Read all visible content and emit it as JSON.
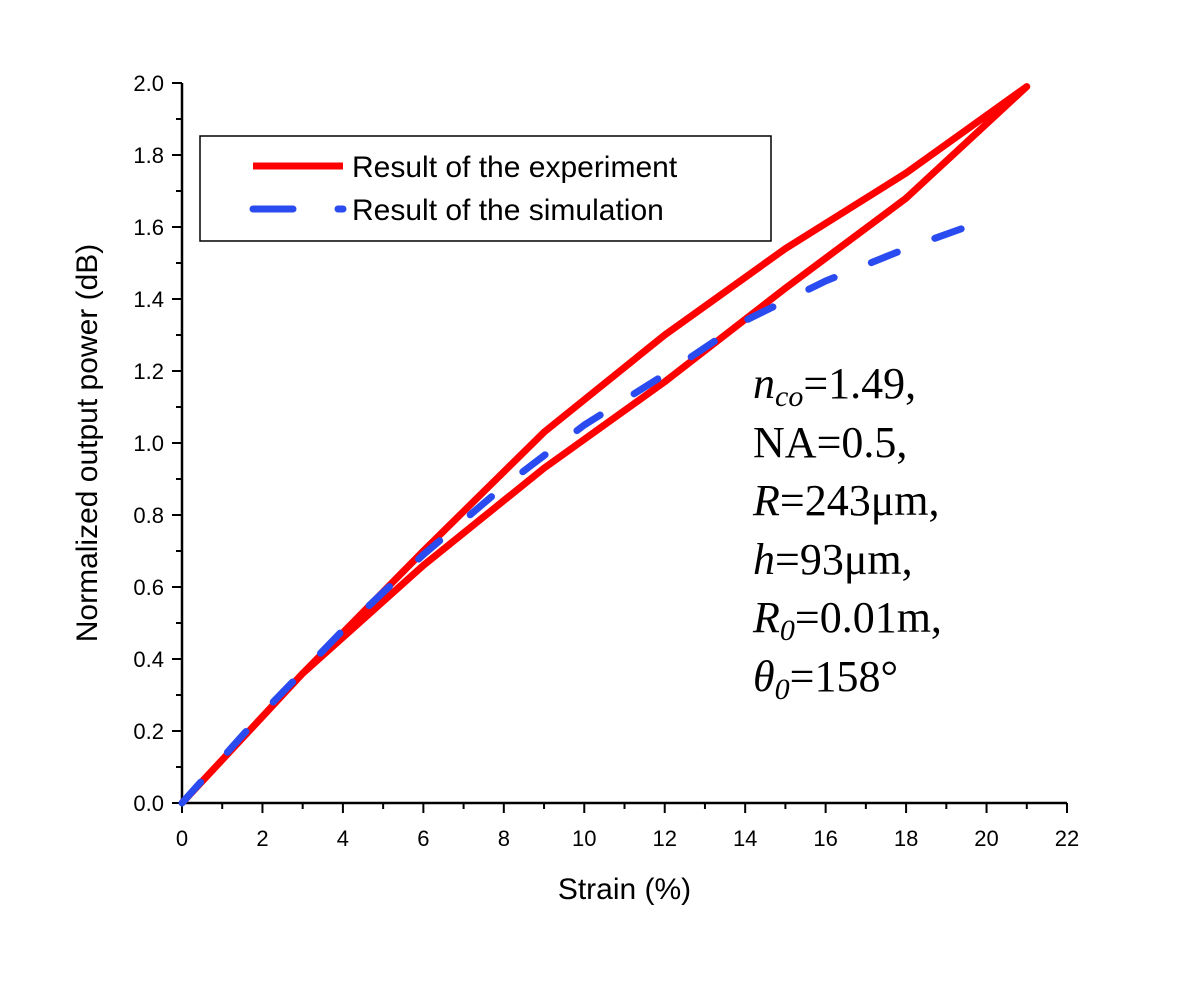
{
  "chart_data": {
    "type": "line",
    "xlabel": "Strain (%)",
    "ylabel": "Normalized output power (dB)",
    "xlim": [
      0,
      22
    ],
    "ylim": [
      0,
      2.0
    ],
    "xticks": [
      "0",
      "2",
      "4",
      "6",
      "8",
      "10",
      "12",
      "14",
      "16",
      "18",
      "20",
      "22"
    ],
    "yticks": [
      "0.0",
      "0.2",
      "0.4",
      "0.6",
      "0.8",
      "1.0",
      "1.2",
      "1.4",
      "1.6",
      "1.8",
      "2.0"
    ],
    "legend_position": "top-left",
    "series": [
      {
        "name": "Result of the experiment",
        "color": "#ff0000",
        "style": "solid",
        "x": [
          0,
          3,
          6,
          9,
          12,
          15,
          18,
          21,
          18,
          15,
          12,
          9,
          6,
          3,
          0
        ],
        "y": [
          0,
          0.36,
          0.7,
          1.03,
          1.3,
          1.54,
          1.75,
          1.99,
          1.68,
          1.43,
          1.17,
          0.93,
          0.66,
          0.36,
          0
        ]
      },
      {
        "name": "Result of the simulation",
        "color": "#2a4bf0",
        "style": "dashed",
        "x": [
          0,
          2,
          4,
          6,
          8,
          10,
          12,
          14,
          16,
          18,
          20
        ],
        "y": [
          0,
          0.25,
          0.48,
          0.69,
          0.88,
          1.05,
          1.19,
          1.34,
          1.45,
          1.54,
          1.62
        ]
      }
    ],
    "annotation": [
      {
        "id": "nco",
        "main": "n",
        "sub": "co",
        "rest": "=1.49,",
        "italic": true
      },
      {
        "id": "na",
        "main": "NA",
        "sub": "",
        "rest": "=0.5,",
        "italic": false
      },
      {
        "id": "r",
        "main": "R",
        "sub": "",
        "rest": "=243μm,",
        "italic": true
      },
      {
        "id": "h",
        "main": "h",
        "sub": "",
        "rest": "=93μm,",
        "italic": true
      },
      {
        "id": "r0",
        "main": "R",
        "sub": "0",
        "rest": "=0.01m,",
        "italic": true
      },
      {
        "id": "theta0",
        "main": "θ",
        "sub": "0",
        "rest": "=158°",
        "italic": true
      }
    ]
  }
}
